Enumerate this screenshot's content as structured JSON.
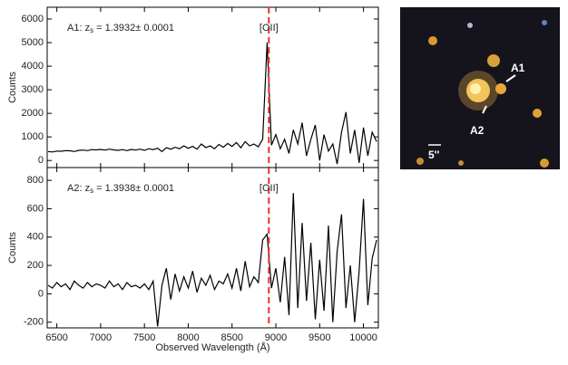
{
  "chart_data": [
    {
      "type": "line",
      "label_prefix": "A1: z",
      "label_sub": "s",
      "label_suffix": " = 1.3932± 0.0001",
      "ylabel": "Counts",
      "marker": {
        "x": 8920,
        "label": "[OII]",
        "color": "#e8332b"
      },
      "color": "#000000",
      "xlim": [
        6390,
        10170
      ],
      "ylim": [
        -300,
        6500
      ],
      "yticks": [
        0,
        1000,
        2000,
        3000,
        4000,
        5000,
        6000
      ],
      "x": [
        6400,
        6450,
        6500,
        6550,
        6600,
        6650,
        6700,
        6750,
        6800,
        6850,
        6900,
        6950,
        7000,
        7050,
        7100,
        7150,
        7200,
        7250,
        7300,
        7350,
        7400,
        7450,
        7500,
        7550,
        7600,
        7650,
        7700,
        7750,
        7800,
        7850,
        7900,
        7950,
        8000,
        8050,
        8100,
        8150,
        8200,
        8250,
        8300,
        8350,
        8400,
        8450,
        8500,
        8550,
        8600,
        8650,
        8700,
        8750,
        8800,
        8850,
        8900,
        8950,
        9000,
        9050,
        9100,
        9150,
        9200,
        9250,
        9300,
        9350,
        9400,
        9450,
        9500,
        9550,
        9600,
        9650,
        9700,
        9750,
        9800,
        9850,
        9900,
        9950,
        10000,
        10050,
        10100,
        10150
      ],
      "values": [
        380,
        360,
        400,
        390,
        420,
        410,
        380,
        430,
        440,
        420,
        460,
        450,
        470,
        440,
        480,
        450,
        430,
        460,
        420,
        470,
        440,
        480,
        430,
        500,
        460,
        520,
        380,
        540,
        480,
        560,
        500,
        620,
        520,
        600,
        480,
        700,
        550,
        620,
        500,
        680,
        560,
        720,
        600,
        760,
        540,
        800,
        620,
        700,
        580,
        900,
        5000,
        650,
        1100,
        500,
        900,
        300,
        1300,
        700,
        1600,
        200,
        900,
        1500,
        0,
        1100,
        400,
        700,
        -150,
        1200,
        2050,
        300,
        1300,
        -100,
        1400,
        200,
        1200,
        800
      ]
    },
    {
      "type": "line",
      "label_prefix": "A2: z",
      "label_sub": "s",
      "label_suffix": " = 1.3938± 0.0001",
      "ylabel": "Counts",
      "xlabel": "Observed Wavelength (Å)",
      "marker": {
        "x": 8920,
        "label": "[OII]",
        "color": "#e8332b"
      },
      "color": "#000000",
      "xlim": [
        6390,
        10170
      ],
      "xticks": [
        6500,
        7000,
        7500,
        8000,
        8500,
        9000,
        9500,
        10000
      ],
      "ylim": [
        -240,
        890
      ],
      "yticks": [
        -200,
        0,
        200,
        400,
        600,
        800
      ],
      "x": [
        6400,
        6450,
        6500,
        6550,
        6600,
        6650,
        6700,
        6750,
        6800,
        6850,
        6900,
        6950,
        7000,
        7050,
        7100,
        7150,
        7200,
        7250,
        7300,
        7350,
        7400,
        7450,
        7500,
        7550,
        7600,
        7650,
        7700,
        7750,
        7800,
        7850,
        7900,
        7950,
        8000,
        8050,
        8100,
        8150,
        8200,
        8250,
        8300,
        8350,
        8400,
        8450,
        8500,
        8550,
        8600,
        8650,
        8700,
        8750,
        8800,
        8850,
        8900,
        8950,
        9000,
        9050,
        9100,
        9150,
        9200,
        9250,
        9300,
        9350,
        9400,
        9450,
        9500,
        9550,
        9600,
        9650,
        9700,
        9750,
        9800,
        9850,
        9900,
        9950,
        10000,
        10050,
        10100,
        10150
      ],
      "values": [
        60,
        40,
        80,
        50,
        70,
        30,
        90,
        60,
        40,
        80,
        50,
        70,
        60,
        40,
        90,
        50,
        70,
        30,
        80,
        50,
        60,
        40,
        70,
        30,
        90,
        -230,
        60,
        180,
        -40,
        140,
        20,
        120,
        40,
        160,
        10,
        110,
        60,
        130,
        30,
        90,
        70,
        140,
        40,
        180,
        20,
        230,
        50,
        120,
        80,
        380,
        420,
        40,
        180,
        -60,
        260,
        -150,
        710,
        -100,
        500,
        -50,
        360,
        -180,
        240,
        -120,
        480,
        -200,
        300,
        560,
        -100,
        200,
        -200,
        160,
        670,
        -80,
        250,
        380
      ]
    }
  ],
  "image": {
    "labels": [
      "A1",
      "A2",
      "5''"
    ]
  }
}
